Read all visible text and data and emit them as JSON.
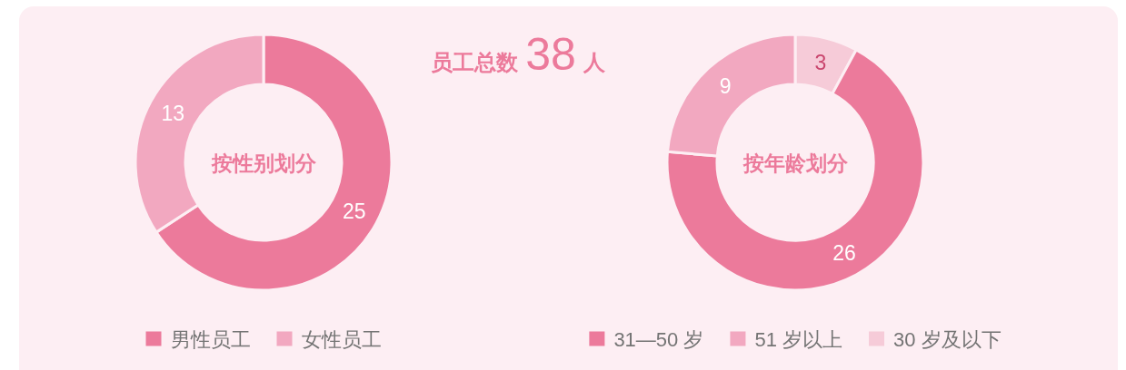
{
  "chart_data": [
    {
      "type": "donut",
      "title": "按性别划分",
      "categories": [
        "男性员工",
        "女性员工"
      ],
      "values": [
        25,
        13
      ],
      "colors": [
        "#ec7a9b",
        "#f2a8c0"
      ],
      "data_labels": true,
      "legend": "bottom"
    },
    {
      "type": "other",
      "title": "员工总数",
      "annotations": [
        "38",
        "人"
      ]
    },
    {
      "type": "donut",
      "title": "按年龄划分",
      "categories": [
        "30 岁及以下",
        "31—50 岁",
        "51 岁以上"
      ],
      "values": [
        3,
        26,
        9
      ],
      "colors": [
        "#f6cbd8",
        "#ec7a9b",
        "#f2a8c0"
      ],
      "data_labels": true,
      "legend": "bottom"
    }
  ]
}
